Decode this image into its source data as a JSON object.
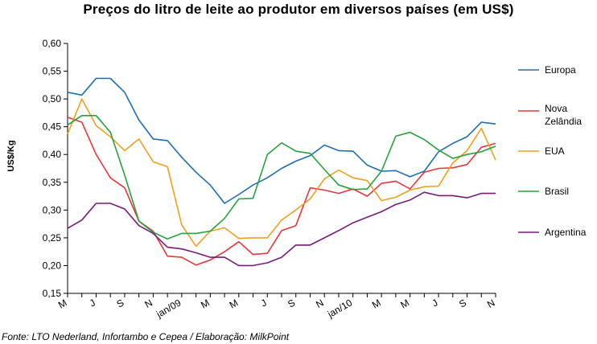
{
  "chart_data": {
    "type": "line",
    "title": "Preços do litro de leite ao produtor em diversos países (em US$)",
    "ylabel": "US$/Kg",
    "source": "Fonte: LTO Nederland, Infortambo e Cepea / Elaboração: MilkPoint",
    "ylim": [
      0.15,
      0.6
    ],
    "y_ticks": [
      "0,15",
      "0,20",
      "0,25",
      "0,30",
      "0,35",
      "0,40",
      "0,45",
      "0,50",
      "0,55",
      "0,60"
    ],
    "x_labels": [
      {
        "label": "M",
        "index": 0
      },
      {
        "label": "J",
        "index": 2
      },
      {
        "label": "S",
        "index": 4
      },
      {
        "label": "N",
        "index": 6
      },
      {
        "label": "jan/09",
        "index": 8
      },
      {
        "label": "M",
        "index": 10
      },
      {
        "label": "M",
        "index": 12
      },
      {
        "label": "J",
        "index": 14
      },
      {
        "label": "S",
        "index": 16
      },
      {
        "label": "N",
        "index": 18
      },
      {
        "label": "jan/10",
        "index": 20
      },
      {
        "label": "M",
        "index": 22
      },
      {
        "label": "M",
        "index": 24
      },
      {
        "label": "J",
        "index": 26
      },
      {
        "label": "S",
        "index": 28
      },
      {
        "label": "N",
        "index": 30
      }
    ],
    "legend_position": "right",
    "grid": false,
    "series": [
      {
        "name": "Europa",
        "color": "#1f6fb2",
        "values": [
          0.512,
          0.507,
          0.537,
          0.537,
          0.512,
          0.462,
          0.428,
          0.425,
          0.395,
          0.368,
          0.345,
          0.312,
          0.328,
          0.345,
          0.358,
          0.375,
          0.388,
          0.398,
          0.417,
          0.407,
          0.406,
          0.381,
          0.37,
          0.371,
          0.36,
          0.37,
          0.405,
          0.42,
          0.432,
          0.458,
          0.455
        ]
      },
      {
        "name": "Nova Zelândia",
        "color": "#e8373c",
        "values": [
          0.467,
          0.458,
          0.4,
          0.358,
          0.34,
          0.28,
          0.262,
          0.217,
          0.215,
          0.201,
          0.21,
          0.225,
          0.243,
          0.22,
          0.222,
          0.263,
          0.272,
          0.34,
          0.336,
          0.33,
          0.338,
          0.325,
          0.348,
          0.352,
          0.338,
          0.368,
          0.375,
          0.376,
          0.382,
          0.413,
          0.42
        ]
      },
      {
        "name": "EUA",
        "color": "#f0a020",
        "values": [
          0.437,
          0.5,
          0.452,
          0.432,
          0.407,
          0.428,
          0.387,
          0.378,
          0.273,
          0.235,
          0.262,
          0.268,
          0.249,
          0.25,
          0.25,
          0.282,
          0.3,
          0.32,
          0.356,
          0.372,
          0.358,
          0.353,
          0.317,
          0.323,
          0.336,
          0.342,
          0.343,
          0.385,
          0.407,
          0.447,
          0.39
        ]
      },
      {
        "name": "Brasil",
        "color": "#27a23c",
        "values": [
          0.453,
          0.47,
          0.47,
          0.44,
          0.363,
          0.28,
          0.26,
          0.248,
          0.258,
          0.258,
          0.262,
          0.285,
          0.32,
          0.321,
          0.4,
          0.421,
          0.406,
          0.402,
          0.373,
          0.345,
          0.337,
          0.338,
          0.37,
          0.433,
          0.44,
          0.427,
          0.408,
          0.393,
          0.4,
          0.405,
          0.415
        ]
      },
      {
        "name": "Argentina",
        "color": "#7a1a7a",
        "values": [
          0.267,
          0.282,
          0.312,
          0.312,
          0.302,
          0.272,
          0.258,
          0.233,
          0.23,
          0.223,
          0.215,
          0.215,
          0.2,
          0.2,
          0.205,
          0.215,
          0.237,
          0.237,
          0.25,
          0.263,
          0.277,
          0.287,
          0.297,
          0.31,
          0.318,
          0.332,
          0.326,
          0.326,
          0.322,
          0.33,
          0.33
        ]
      }
    ]
  }
}
